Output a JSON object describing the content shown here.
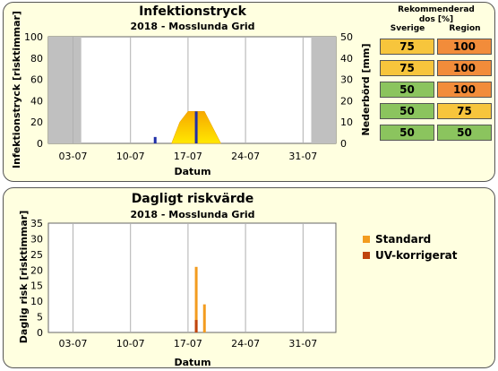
{
  "top_chart": {
    "title": "Infektionstryck",
    "subtitle": "2018 - Mosslunda Grid",
    "ylabel_left": "Infektionstryck [risktimmar]",
    "ylabel_right": "Nederbörd [mm]",
    "xlabel": "Datum"
  },
  "bottom_chart": {
    "title": "Dagligt riskvärde",
    "subtitle": "2018 - Mosslunda Grid",
    "ylabel": "Daglig risk [risktimmar]",
    "xlabel": "Datum",
    "legend": [
      {
        "label": "Standard",
        "color": "#f39c1f"
      },
      {
        "label": "UV-korrigerat",
        "color": "#c0440e"
      }
    ]
  },
  "dose_table": {
    "title_line1": "Rekommenderad",
    "title_line2": "dos [%]",
    "col_sverige": "Sverige",
    "col_region": "Region",
    "rows": [
      {
        "sverige": "75",
        "sverige_color": "#f7c53c",
        "region": "100",
        "region_color": "#f28c3a"
      },
      {
        "sverige": "75",
        "sverige_color": "#f7c53c",
        "region": "100",
        "region_color": "#f28c3a"
      },
      {
        "sverige": "50",
        "sverige_color": "#8bc45e",
        "region": "100",
        "region_color": "#f28c3a"
      },
      {
        "sverige": "50",
        "sverige_color": "#8bc45e",
        "region": "75",
        "region_color": "#f7c53c"
      },
      {
        "sverige": "50",
        "sverige_color": "#8bc45e",
        "region": "50",
        "region_color": "#8bc45e"
      }
    ]
  },
  "chart_data": [
    {
      "type": "area",
      "title": "Infektionstryck",
      "subtitle": "2018 - Mosslunda Grid",
      "xlabel": "Datum",
      "ylabel": "Infektionstryck [risktimmar]",
      "y2label": "Nederbörd [mm]",
      "x_ticks": [
        "03-07",
        "10-07",
        "17-07",
        "24-07",
        "31-07"
      ],
      "ylim": [
        0,
        100
      ],
      "y_ticks": [
        0,
        20,
        40,
        60,
        80,
        100
      ],
      "y2lim": [
        0,
        50
      ],
      "y2_ticks": [
        0,
        10,
        20,
        30,
        40,
        50
      ],
      "shaded_regions": [
        {
          "start": "2018-06-30",
          "end": "2018-07-04",
          "color": "#c0c0c0"
        },
        {
          "start": "2018-08-01",
          "end": "2018-08-04",
          "color": "#c0c0c0"
        }
      ],
      "infection_pressure": {
        "x": [
          "2018-07-15",
          "2018-07-16",
          "2018-07-17",
          "2018-07-18",
          "2018-07-19",
          "2018-07-20",
          "2018-07-21"
        ],
        "y": [
          0,
          20,
          30,
          30,
          30,
          15,
          0
        ]
      },
      "precipitation_mm": {
        "x": [
          "2018-07-13",
          "2018-07-18"
        ],
        "y": [
          3,
          15
        ],
        "color": "#1f2fa8"
      },
      "grid": true
    },
    {
      "type": "bar",
      "title": "Dagligt riskvärde",
      "subtitle": "2018 - Mosslunda Grid",
      "xlabel": "Datum",
      "ylabel": "Daglig risk [risktimmar]",
      "x_ticks": [
        "03-07",
        "10-07",
        "17-07",
        "24-07",
        "31-07"
      ],
      "ylim": [
        0,
        35
      ],
      "y_ticks": [
        0,
        5,
        10,
        15,
        20,
        25,
        30,
        35
      ],
      "series": [
        {
          "name": "Standard",
          "color": "#f39c1f",
          "x": [
            "2018-07-18",
            "2018-07-19"
          ],
          "values": [
            21,
            9
          ]
        },
        {
          "name": "UV-korrigerat",
          "color": "#c0440e",
          "x": [
            "2018-07-18",
            "2018-07-19"
          ],
          "values": [
            4,
            0
          ]
        }
      ],
      "legend": "right",
      "grid": true
    }
  ]
}
